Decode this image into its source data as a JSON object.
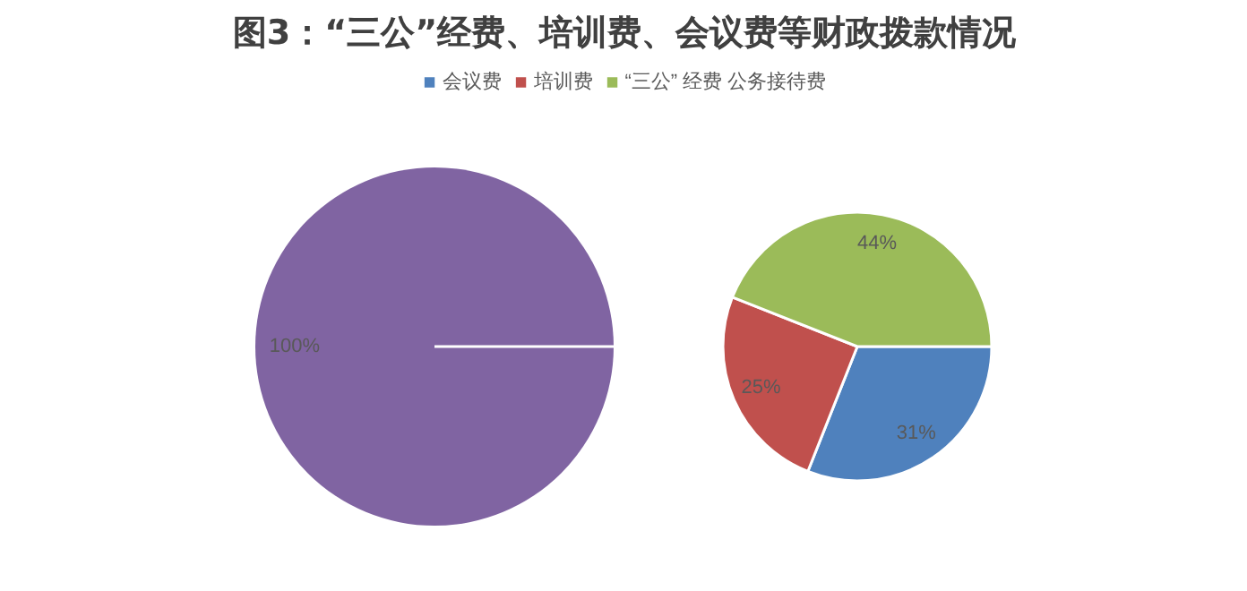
{
  "chart_data": [
    {
      "type": "pie",
      "title": "图3：“三公”经费、培训费、会议费等财政拨款情况",
      "categories": [
        null
      ],
      "values": [
        100
      ],
      "colors": [
        "#8064a2"
      ],
      "value_labels": [
        "100%"
      ]
    },
    {
      "type": "pie",
      "categories": [
        "会议费",
        "培训费",
        "“三公” 经费 公务接待费"
      ],
      "values": [
        31,
        25,
        44
      ],
      "colors": [
        "#4f81bd",
        "#c0504d",
        "#9bbb59"
      ],
      "value_labels": [
        "31%",
        "25%",
        "44%"
      ],
      "legend": "top"
    }
  ]
}
